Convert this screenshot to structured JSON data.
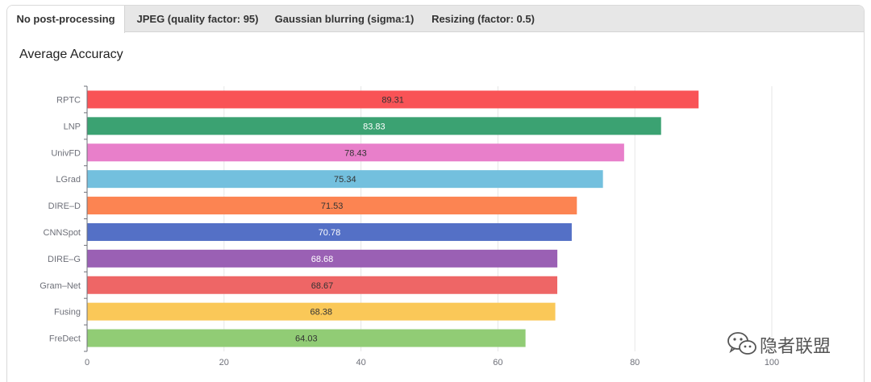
{
  "tabs": [
    {
      "label": "No post-processing",
      "active": true
    },
    {
      "label": "JPEG (quality factor: 95)",
      "active": false
    },
    {
      "label": "Gaussian blurring (sigma:1)",
      "active": false
    },
    {
      "label": "Resizing (factor: 0.5)",
      "active": false
    }
  ],
  "section_title": "Average Accuracy",
  "watermark": {
    "text": "隐者联盟",
    "icon": "wechat-icon"
  },
  "chart_data": {
    "type": "bar",
    "orientation": "horizontal",
    "categories": [
      "RPTC",
      "LNP",
      "UnivFD",
      "LGrad",
      "DIRE–D",
      "CNNSpot",
      "DIRE–G",
      "Gram–Net",
      "Fusing",
      "FreDect"
    ],
    "values": [
      89.31,
      83.83,
      78.43,
      75.34,
      71.53,
      70.78,
      68.68,
      68.67,
      68.38,
      64.03
    ],
    "labels": [
      "89.31",
      "83.83",
      "78.43",
      "75.34",
      "71.53",
      "70.78",
      "68.68",
      "68.67",
      "68.38",
      "64.03"
    ],
    "colors": [
      "#f95356",
      "#3ba272",
      "#e87fca",
      "#73c0de",
      "#fc8452",
      "#5470c6",
      "#9a60b4",
      "#ee6666",
      "#fac858",
      "#91cc75"
    ],
    "label_colors": [
      "#333333",
      "#ffffff",
      "#333333",
      "#333333",
      "#333333",
      "#ffffff",
      "#ffffff",
      "#333333",
      "#333333",
      "#333333"
    ],
    "xlim": [
      0,
      100
    ],
    "xticks": [
      "0",
      "20",
      "40",
      "60",
      "80",
      "100"
    ],
    "grid": true
  }
}
